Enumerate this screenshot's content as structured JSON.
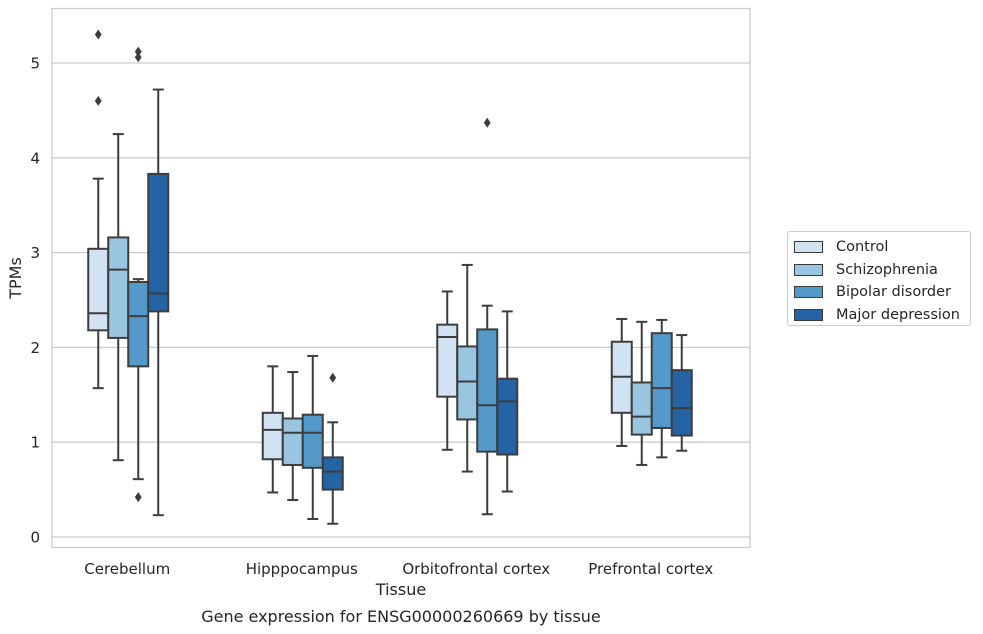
{
  "chart_data": {
    "type": "boxplot",
    "xlabel": "Tissue",
    "ylabel": "TPMs",
    "caption": "Gene expression for ENSG00000260669 by tissue",
    "categories": [
      "Cerebellum",
      "Hipppocampus",
      "Orbitofrontal cortex",
      "Prefrontal cortex"
    ],
    "ylim": [
      -0.1,
      5.55
    ],
    "yticks": [
      "0",
      "1",
      "2",
      "3",
      "4",
      "5"
    ],
    "grid": "horizontal",
    "legend_position": "right",
    "series": [
      {
        "name": "Control",
        "color": "#d1e2f2",
        "boxes": [
          {
            "low": 1.57,
            "q1": 2.18,
            "median": 2.36,
            "q3": 3.04,
            "high": 3.78,
            "outliers": [
              5.3,
              4.6
            ]
          },
          {
            "low": 0.47,
            "q1": 0.82,
            "median": 1.13,
            "q3": 1.31,
            "high": 1.8,
            "outliers": []
          },
          {
            "low": 0.92,
            "q1": 1.48,
            "median": 2.11,
            "q3": 2.24,
            "high": 2.59,
            "outliers": []
          },
          {
            "low": 0.96,
            "q1": 1.31,
            "median": 1.69,
            "q3": 2.06,
            "high": 2.3,
            "outliers": []
          }
        ]
      },
      {
        "name": "Schizophrenia",
        "color": "#9ac5e0",
        "boxes": [
          {
            "low": 0.81,
            "q1": 2.1,
            "median": 2.82,
            "q3": 3.16,
            "high": 4.25,
            "outliers": []
          },
          {
            "low": 0.39,
            "q1": 0.76,
            "median": 1.1,
            "q3": 1.25,
            "high": 1.74,
            "outliers": []
          },
          {
            "low": 0.69,
            "q1": 1.24,
            "median": 1.64,
            "q3": 2.01,
            "high": 2.87,
            "outliers": []
          },
          {
            "low": 0.76,
            "q1": 1.08,
            "median": 1.27,
            "q3": 1.63,
            "high": 2.27,
            "outliers": []
          }
        ]
      },
      {
        "name": "Bipolar disorder",
        "color": "#5499c9",
        "boxes": [
          {
            "low": 0.61,
            "q1": 1.8,
            "median": 2.33,
            "q3": 2.69,
            "high": 2.72,
            "outliers": [
              5.12,
              5.06,
              0.42
            ]
          },
          {
            "low": 0.19,
            "q1": 0.73,
            "median": 1.1,
            "q3": 1.29,
            "high": 1.91,
            "outliers": []
          },
          {
            "low": 0.24,
            "q1": 0.9,
            "median": 1.39,
            "q3": 2.19,
            "high": 2.44,
            "outliers": [
              4.37
            ]
          },
          {
            "low": 0.84,
            "q1": 1.15,
            "median": 1.57,
            "q3": 2.15,
            "high": 2.29,
            "outliers": []
          }
        ]
      },
      {
        "name": "Major depression",
        "color": "#2463a4",
        "boxes": [
          {
            "low": 0.23,
            "q1": 2.38,
            "median": 2.57,
            "q3": 3.83,
            "high": 4.72,
            "outliers": []
          },
          {
            "low": 0.14,
            "q1": 0.5,
            "median": 0.69,
            "q3": 0.84,
            "high": 1.21,
            "outliers": [
              1.68
            ]
          },
          {
            "low": 0.48,
            "q1": 0.87,
            "median": 1.43,
            "q3": 1.67,
            "high": 2.38,
            "outliers": []
          },
          {
            "low": 0.91,
            "q1": 1.07,
            "median": 1.36,
            "q3": 1.76,
            "high": 2.13,
            "outliers": []
          }
        ]
      }
    ]
  }
}
